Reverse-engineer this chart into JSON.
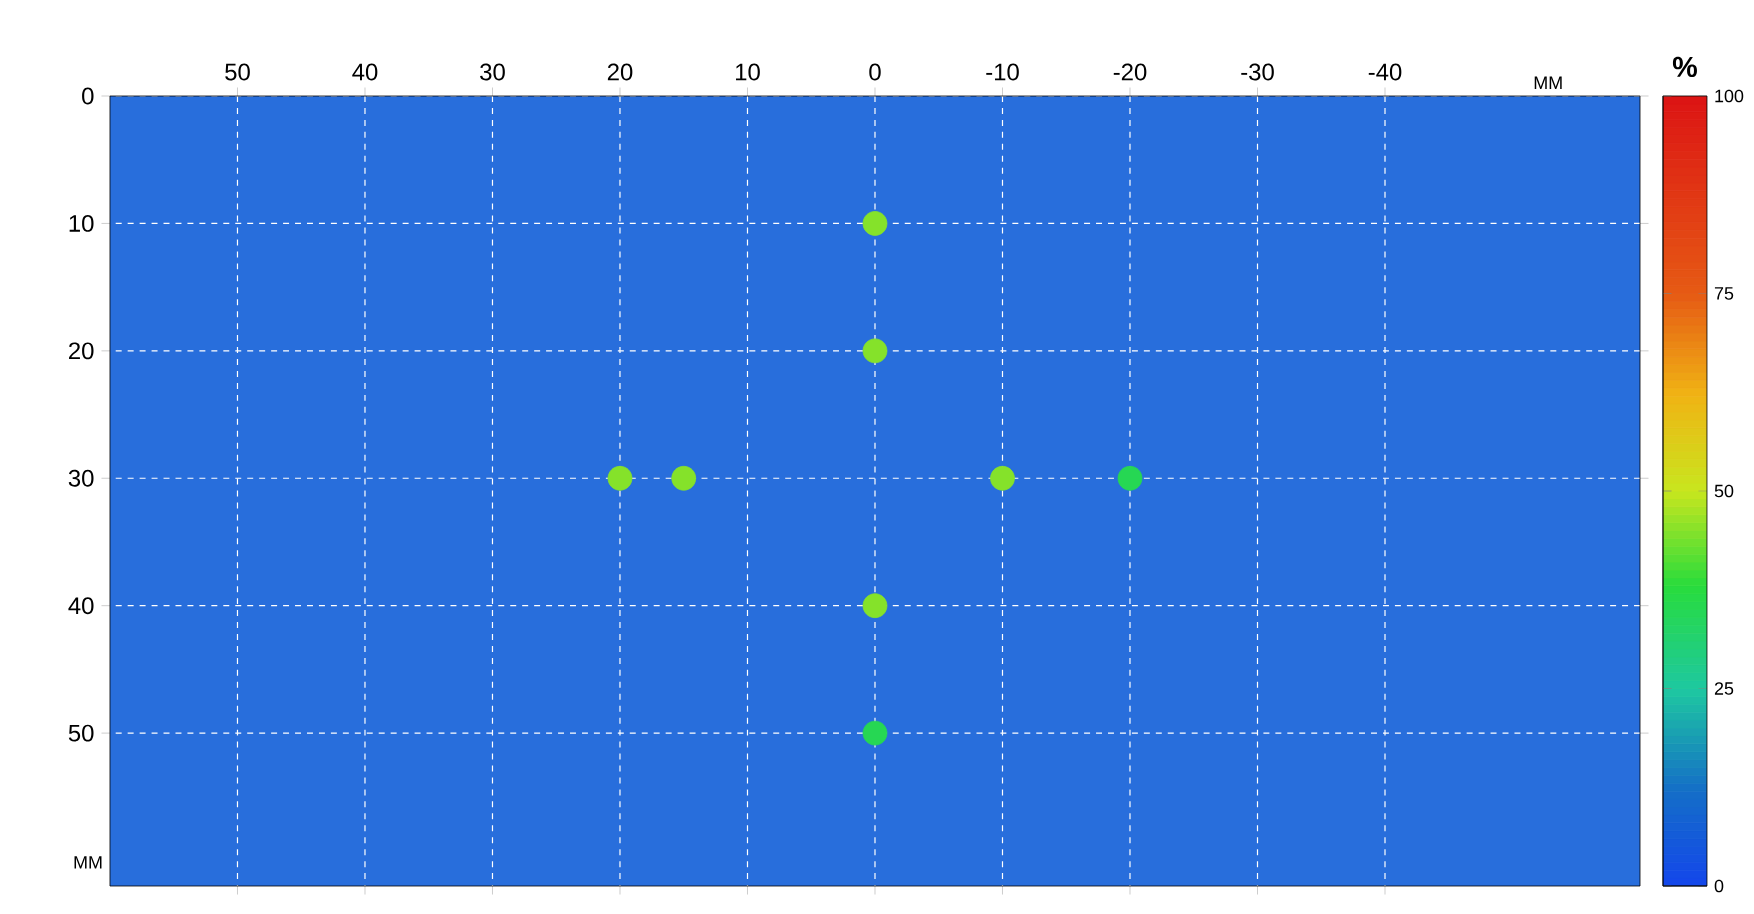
{
  "chart_data": {
    "type": "scatter",
    "xlabel": "MM",
    "ylabel": "MM",
    "clabel": "%",
    "x": [
      0,
      0,
      20,
      15,
      -10,
      -20,
      0,
      0
    ],
    "values": [
      10,
      20,
      30,
      30,
      30,
      30,
      40,
      50
    ],
    "cvalues": [
      45,
      45,
      45,
      45,
      45,
      35,
      45,
      35
    ],
    "xlim": [
      60,
      -60
    ],
    "ylim": [
      62,
      0
    ],
    "xticks": [
      50,
      40,
      30,
      20,
      10,
      0,
      -10,
      -20,
      -30,
      -40
    ],
    "yticks": [
      0,
      10,
      20,
      30,
      40,
      50
    ],
    "clim": [
      0,
      100
    ],
    "cticks": [
      0,
      25,
      50,
      75,
      100
    ],
    "grid": true,
    "marker": "circle"
  }
}
